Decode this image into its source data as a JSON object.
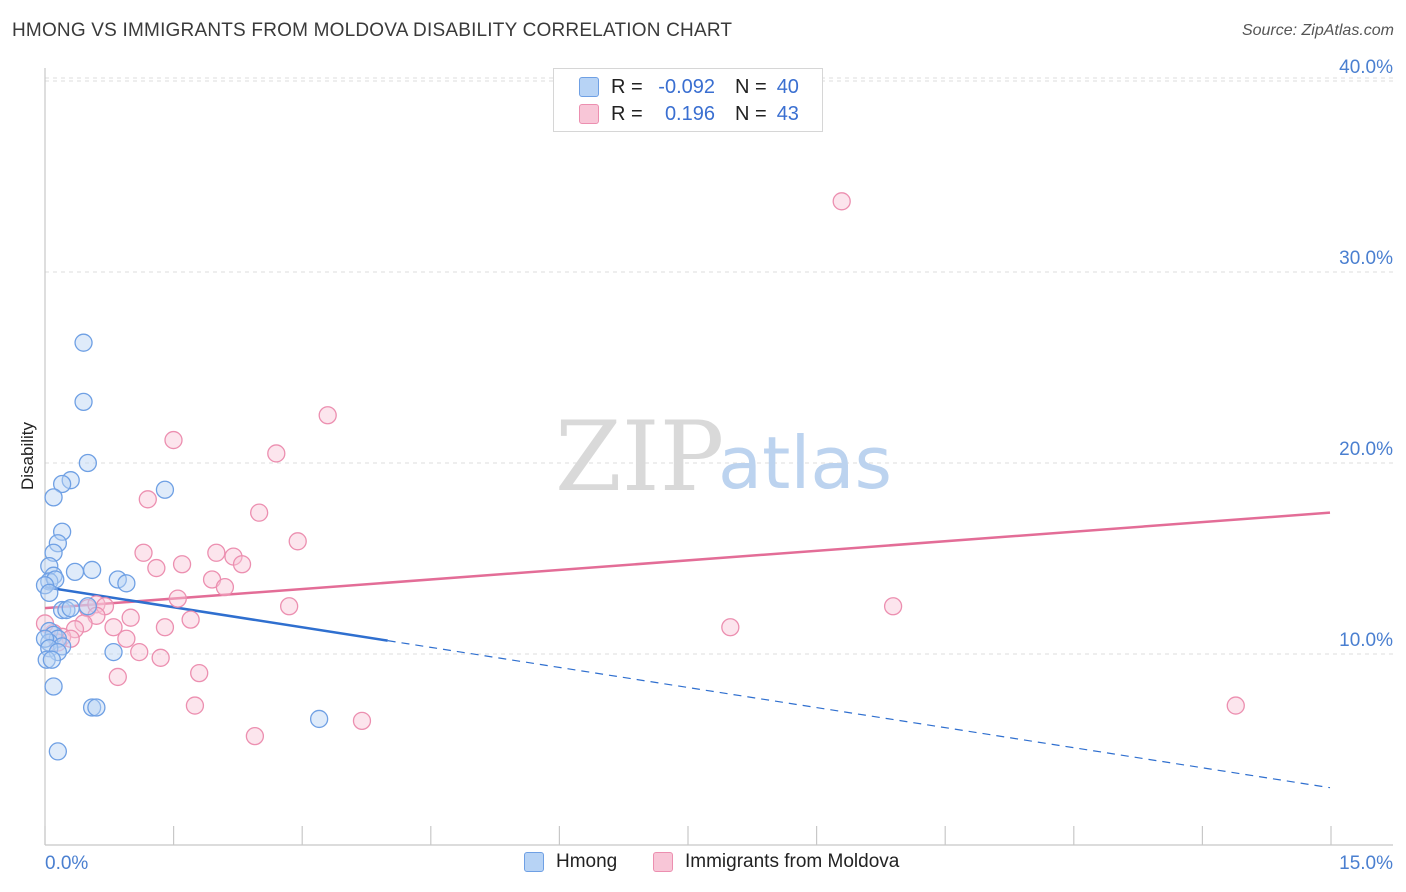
{
  "header": {
    "title": "HMONG VS IMMIGRANTS FROM MOLDOVA DISABILITY CORRELATION CHART",
    "source": "Source: ZipAtlas.com"
  },
  "watermark": {
    "zip": "ZIP",
    "atlas": "atlas"
  },
  "legend": {
    "rows": [
      {
        "r_label": "R =",
        "r_value": "-0.092",
        "n_label": "N =",
        "n_value": "40"
      },
      {
        "r_label": "R =",
        "r_value": "0.196",
        "n_label": "N =",
        "n_value": "43"
      }
    ]
  },
  "colors": {
    "blue_fill": "#b7d3f5",
    "blue_stroke": "#6fa0e4",
    "blue_line": "#2f6fcf",
    "pink_fill": "#f8c6d7",
    "pink_stroke": "#ec8fb0",
    "pink_line": "#e36d97",
    "tick_text": "#4a7fd0",
    "grid": "#dddddd"
  },
  "chart_data": {
    "type": "scatter",
    "title": "HMONG VS IMMIGRANTS FROM MOLDOVA DISABILITY CORRELATION CHART",
    "xlabel": "",
    "ylabel": "Disability",
    "xlim": [
      0,
      15
    ],
    "ylim": [
      0,
      42
    ],
    "x_tick_labels": [
      "0.0%",
      "15.0%"
    ],
    "y_ticks": [
      10,
      20,
      30,
      40
    ],
    "y_tick_labels": [
      "10.0%",
      "20.0%",
      "30.0%",
      "40.0%"
    ],
    "grid": true,
    "series": [
      {
        "name": "Hmong",
        "color": "#6fa0e4",
        "points": [
          [
            0.45,
            26.3
          ],
          [
            0.45,
            23.2
          ],
          [
            0.5,
            20.0
          ],
          [
            0.3,
            19.1
          ],
          [
            0.2,
            18.9
          ],
          [
            1.4,
            18.6
          ],
          [
            0.1,
            18.2
          ],
          [
            0.2,
            16.4
          ],
          [
            0.15,
            15.8
          ],
          [
            0.1,
            15.3
          ],
          [
            0.05,
            14.6
          ],
          [
            0.35,
            14.3
          ],
          [
            0.55,
            14.4
          ],
          [
            0.1,
            14.1
          ],
          [
            0.05,
            13.8
          ],
          [
            0.12,
            13.9
          ],
          [
            0.0,
            13.6
          ],
          [
            0.85,
            13.9
          ],
          [
            0.95,
            13.7
          ],
          [
            0.05,
            13.2
          ],
          [
            0.2,
            12.3
          ],
          [
            0.25,
            12.3
          ],
          [
            0.3,
            12.4
          ],
          [
            0.5,
            12.5
          ],
          [
            0.05,
            11.2
          ],
          [
            0.1,
            11.0
          ],
          [
            0.15,
            10.8
          ],
          [
            0.05,
            10.6
          ],
          [
            0.0,
            10.8
          ],
          [
            0.2,
            10.4
          ],
          [
            0.05,
            10.3
          ],
          [
            0.15,
            10.1
          ],
          [
            0.8,
            10.1
          ],
          [
            0.02,
            9.7
          ],
          [
            0.08,
            9.7
          ],
          [
            0.1,
            8.3
          ],
          [
            0.55,
            7.2
          ],
          [
            0.6,
            7.2
          ],
          [
            3.2,
            6.6
          ],
          [
            0.15,
            4.9
          ]
        ],
        "trend_solid": [
          [
            0.0,
            13.5
          ],
          [
            4.0,
            10.7
          ]
        ],
        "trend_dashed": [
          [
            4.0,
            10.7
          ],
          [
            15.0,
            3.0
          ]
        ]
      },
      {
        "name": "Immigrants from Moldova",
        "color": "#ec8fb0",
        "points": [
          [
            9.3,
            33.7
          ],
          [
            3.3,
            22.5
          ],
          [
            1.5,
            21.2
          ],
          [
            2.7,
            20.5
          ],
          [
            1.2,
            18.1
          ],
          [
            2.5,
            17.4
          ],
          [
            2.95,
            15.9
          ],
          [
            1.15,
            15.3
          ],
          [
            2.0,
            15.3
          ],
          [
            2.2,
            15.1
          ],
          [
            1.3,
            14.5
          ],
          [
            1.6,
            14.7
          ],
          [
            2.3,
            14.7
          ],
          [
            1.95,
            13.9
          ],
          [
            2.1,
            13.5
          ],
          [
            1.55,
            12.9
          ],
          [
            0.5,
            12.4
          ],
          [
            0.6,
            12.6
          ],
          [
            0.7,
            12.5
          ],
          [
            2.85,
            12.5
          ],
          [
            9.9,
            12.5
          ],
          [
            0.6,
            12.0
          ],
          [
            1.0,
            11.9
          ],
          [
            0.45,
            11.6
          ],
          [
            1.7,
            11.8
          ],
          [
            0.8,
            11.4
          ],
          [
            1.4,
            11.4
          ],
          [
            8.0,
            11.4
          ],
          [
            0.35,
            11.3
          ],
          [
            0.1,
            11.1
          ],
          [
            0.2,
            10.9
          ],
          [
            0.3,
            10.8
          ],
          [
            0.15,
            10.6
          ],
          [
            0.95,
            10.8
          ],
          [
            1.1,
            10.1
          ],
          [
            1.35,
            9.8
          ],
          [
            1.8,
            9.0
          ],
          [
            0.85,
            8.8
          ],
          [
            1.75,
            7.3
          ],
          [
            13.9,
            7.3
          ],
          [
            3.7,
            6.5
          ],
          [
            2.45,
            5.7
          ],
          [
            0.0,
            11.6
          ]
        ],
        "trend_solid": [
          [
            0.0,
            12.4
          ],
          [
            15.0,
            17.4
          ]
        ]
      }
    ]
  },
  "bottom_legend": {
    "items": [
      {
        "label": "Hmong"
      },
      {
        "label": "Immigrants from Moldova"
      }
    ]
  }
}
